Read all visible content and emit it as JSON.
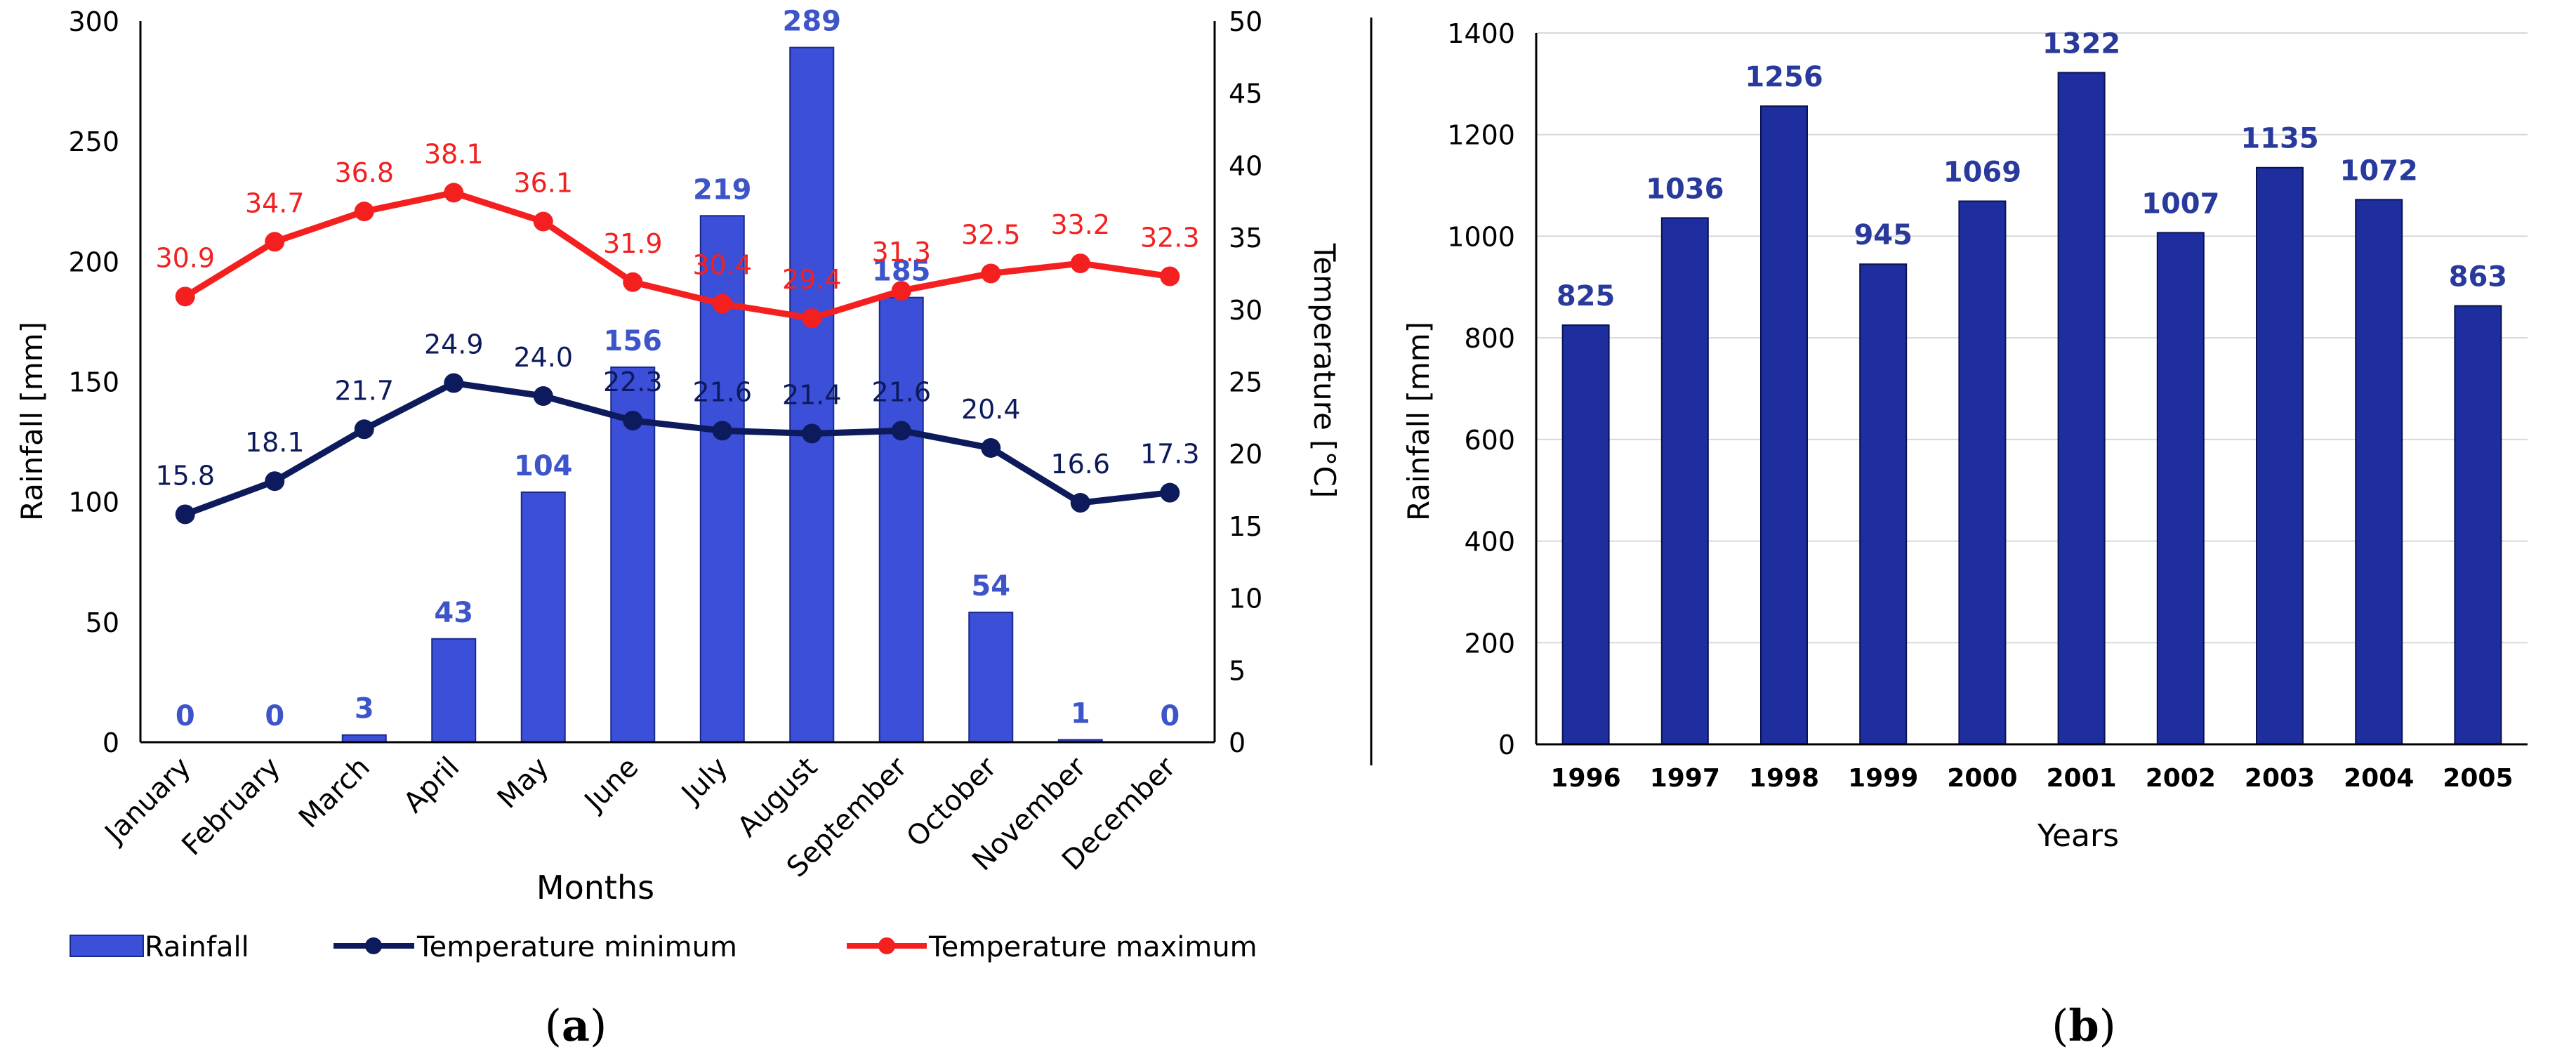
{
  "colors": {
    "rainfall_a": "#3b4fd8",
    "rainfall_a_label": "#3d55c8",
    "temp_min": "#0d1a5c",
    "temp_max": "#f42020",
    "rainfall_b": "#1e2e9e",
    "rainfall_b_label": "#283a9c",
    "axis": "#000000",
    "grid": "#d8d8d8"
  },
  "panel_a": {
    "caption_letter": "a",
    "legend": {
      "rainfall": "Rainfall",
      "temp_min": "Temperature minimum",
      "temp_max": "Temperature maximum"
    }
  },
  "panel_b": {
    "caption_letter": "b"
  },
  "chart_data": [
    {
      "type": "bar",
      "title": "",
      "xlabel": "Months",
      "ylabel": "Rainfall [mm]",
      "y2label": "Temperature [°C]",
      "categories": [
        "January",
        "February",
        "March",
        "April",
        "May",
        "June",
        "July",
        "August",
        "September",
        "October",
        "November",
        "December"
      ],
      "ylim": [
        0,
        300
      ],
      "yticks": [
        0,
        50,
        100,
        150,
        200,
        250,
        300
      ],
      "y2lim": [
        0,
        50
      ],
      "y2ticks": [
        0,
        5,
        10,
        15,
        20,
        25,
        30,
        35,
        40,
        45,
        50
      ],
      "legend_position": "bottom",
      "series": [
        {
          "name": "Rainfall",
          "type": "bar",
          "axis": "left",
          "values": [
            0,
            0,
            3,
            43,
            104,
            156,
            219,
            289,
            185,
            54,
            1,
            0
          ],
          "labels": [
            "0",
            "0",
            "3",
            "43",
            "104",
            "156",
            "219",
            "289",
            "185",
            "54",
            "1",
            "0"
          ]
        },
        {
          "name": "Temperature minimum",
          "type": "line",
          "axis": "right",
          "values": [
            15.8,
            18.1,
            21.7,
            24.9,
            24.0,
            22.3,
            21.6,
            21.4,
            21.6,
            20.4,
            16.6,
            17.3
          ],
          "labels": [
            "15.8",
            "18.1",
            "21.7",
            "24.9",
            "24.0",
            "22.3",
            "21.6",
            "21.4",
            "21.6",
            "20.4",
            "16.6",
            "17.3"
          ]
        },
        {
          "name": "Temperature maximum",
          "type": "line",
          "axis": "right",
          "values": [
            30.9,
            34.7,
            36.8,
            38.1,
            36.1,
            31.9,
            30.4,
            29.4,
            31.3,
            32.5,
            33.2,
            32.3
          ],
          "labels": [
            "30.9",
            "34.7",
            "36.8",
            "38.1",
            "36.1",
            "31.9",
            "30.4",
            "29.4",
            "31.3",
            "32.5",
            "33.2",
            "32.3"
          ]
        }
      ]
    },
    {
      "type": "bar",
      "title": "",
      "xlabel": "Years",
      "ylabel": "Rainfall [mm]",
      "categories": [
        "1996",
        "1997",
        "1998",
        "1999",
        "2000",
        "2001",
        "2002",
        "2003",
        "2004",
        "2005"
      ],
      "ylim": [
        0,
        1400
      ],
      "yticks": [
        0,
        200,
        400,
        600,
        800,
        1000,
        1200,
        1400
      ],
      "grid": true,
      "series": [
        {
          "name": "Rainfall",
          "type": "bar",
          "values": [
            825,
            1036,
            1256,
            945,
            1069,
            1322,
            1007,
            1135,
            1072,
            863
          ],
          "labels": [
            "825",
            "1036",
            "1256",
            "945",
            "1069",
            "1322",
            "1007",
            "1135",
            "1072",
            "863"
          ]
        }
      ]
    }
  ]
}
